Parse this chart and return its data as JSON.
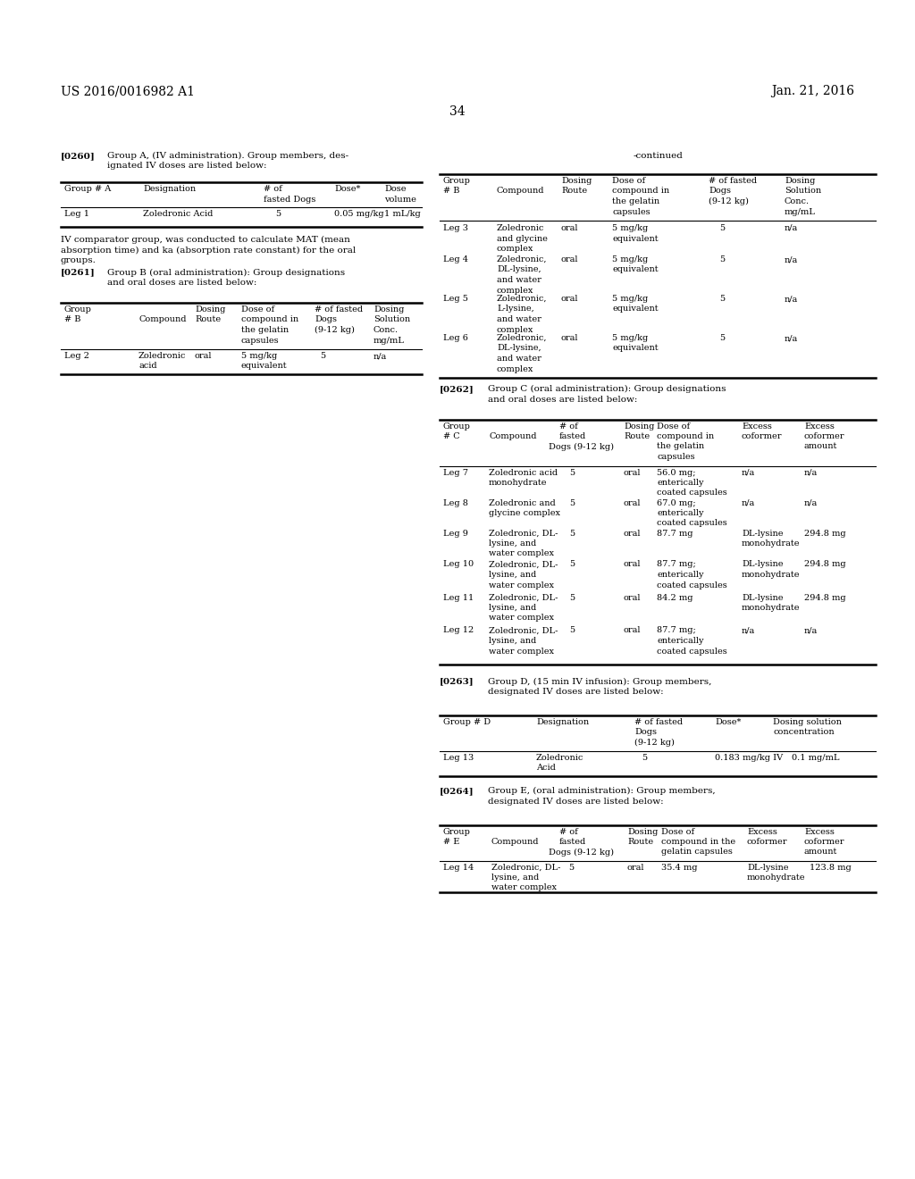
{
  "bg_color": "#ffffff",
  "header_left": "US 2016/0016982 A1",
  "header_right": "Jan. 21, 2016",
  "page_number": "34",
  "font_family": "DejaVu Serif",
  "body_fontsize": 7.5
}
